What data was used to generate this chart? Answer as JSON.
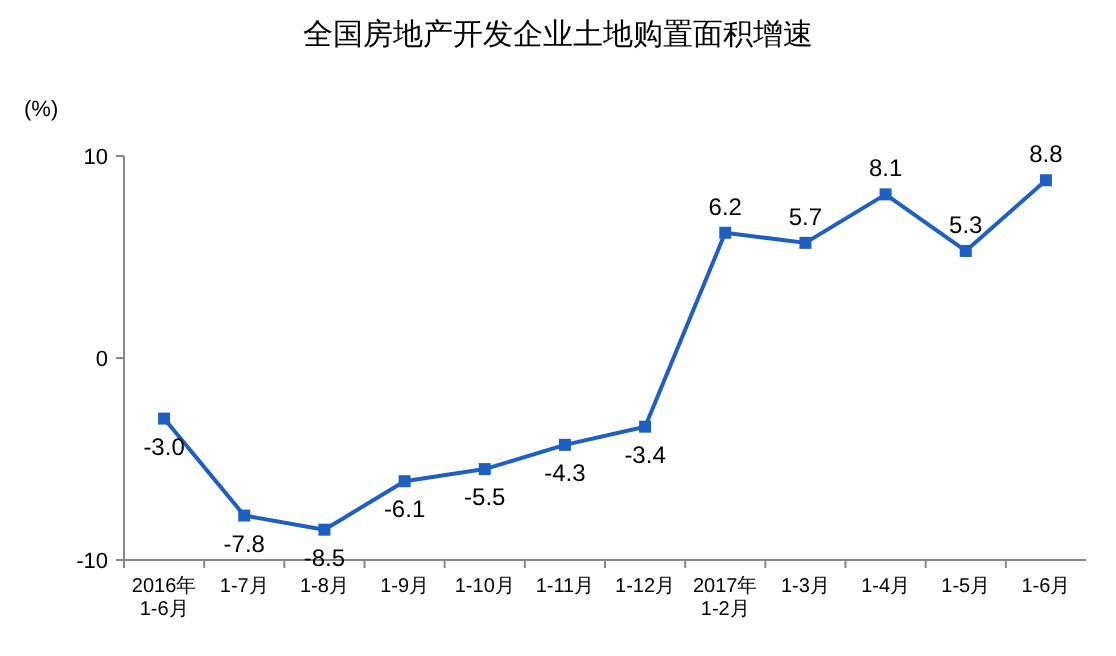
{
  "chart_data": {
    "type": "line",
    "title": "全国房地产开发企业土地购置面积增速",
    "ylabel": "(%)",
    "categories": [
      "2016年\n1-6月",
      "1-7月",
      "1-8月",
      "1-9月",
      "1-10月",
      "1-11月",
      "1-12月",
      "2017年\n1-2月",
      "1-3月",
      "1-4月",
      "1-5月",
      "1-6月"
    ],
    "series": [
      {
        "color": "#1f5fbf",
        "values": [
          -3.0,
          -7.8,
          -8.5,
          -6.1,
          -5.5,
          -4.3,
          -3.4,
          6.2,
          5.7,
          8.1,
          5.3,
          8.8
        ],
        "value_labels": [
          "-3.0",
          "-7.8",
          "-8.5",
          "-6.1",
          "-5.5",
          "-4.3",
          "-3.4",
          "6.2",
          "5.7",
          "8.1",
          "5.3",
          "8.8"
        ]
      }
    ],
    "ylim": [
      -10,
      10
    ],
    "yticks": [
      -10,
      0,
      10
    ],
    "marker": "square",
    "line_style": "solid",
    "grid": false
  }
}
